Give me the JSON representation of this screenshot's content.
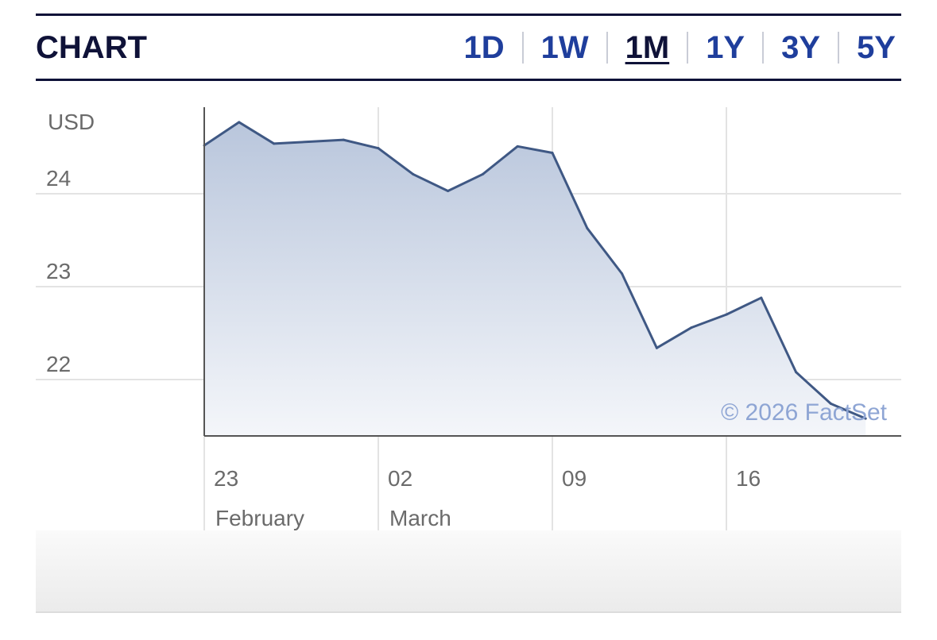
{
  "header": {
    "title": "CHART",
    "tabs": [
      {
        "label": "1D",
        "active": false
      },
      {
        "label": "1W",
        "active": false
      },
      {
        "label": "1M",
        "active": true
      },
      {
        "label": "1Y",
        "active": false
      },
      {
        "label": "3Y",
        "active": false
      },
      {
        "label": "5Y",
        "active": false
      }
    ]
  },
  "colors": {
    "accent": "#1f3e9c",
    "title": "#0f1238",
    "line": "#3f5884",
    "fill_top": "#b9c6dc",
    "fill_bottom": "#f4f6fa",
    "watermark": "#8ea5d4"
  },
  "chart_data": {
    "type": "area",
    "title": "",
    "xlabel": "",
    "ylabel": "USD",
    "ylim": [
      21.4,
      25.0
    ],
    "yticks": [
      22,
      23,
      24
    ],
    "grid": true,
    "x_tick_labels": [
      {
        "day": "23",
        "month": "February",
        "x": 0
      },
      {
        "day": "02",
        "month": "March",
        "x": 5
      },
      {
        "day": "09",
        "month": "",
        "x": 10
      },
      {
        "day": "16",
        "month": "",
        "x": 15
      }
    ],
    "xlim": [
      0,
      20
    ],
    "series": [
      {
        "x": [
          0,
          1,
          2,
          3,
          4,
          5,
          6,
          7,
          8,
          9,
          10,
          11,
          12,
          13,
          14,
          15,
          16,
          17,
          18,
          19
        ],
        "values": [
          24.52,
          24.77,
          24.54,
          24.56,
          24.58,
          24.49,
          24.21,
          24.03,
          24.21,
          24.51,
          24.44,
          23.63,
          23.14,
          22.34,
          22.56,
          22.7,
          22.88,
          22.08,
          21.74,
          21.58
        ]
      }
    ],
    "watermark": "© 2026 FactSet"
  }
}
